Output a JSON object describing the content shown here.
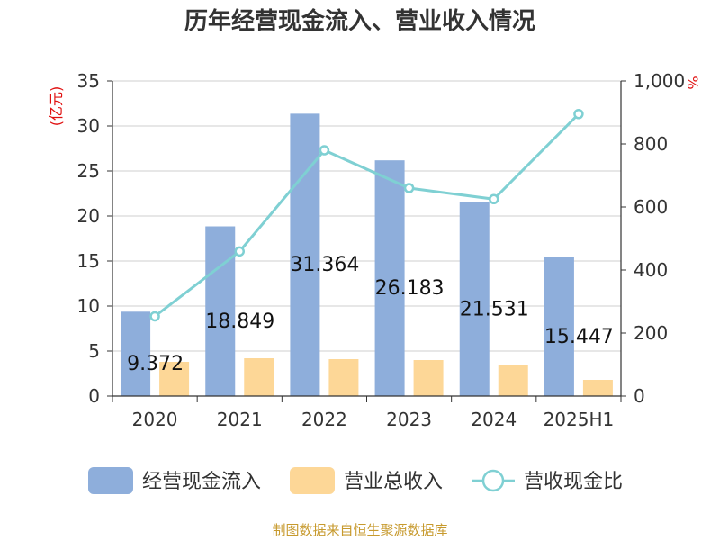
{
  "chart_data": {
    "type": "bar",
    "title": "历年经营现金流入、营业收入情况",
    "categories": [
      "2020",
      "2021",
      "2022",
      "2023",
      "2024",
      "2025H1"
    ],
    "series": [
      {
        "name": "经营现金流入",
        "kind": "bar",
        "axis": "left",
        "color": "#8eaedb",
        "values": [
          9.372,
          18.849,
          31.364,
          26.183,
          21.531,
          15.447
        ]
      },
      {
        "name": "营业总收入",
        "kind": "bar",
        "axis": "left",
        "color": "#fdd797",
        "values": [
          3.8,
          4.2,
          4.1,
          4.0,
          3.5,
          1.8
        ]
      },
      {
        "name": "营收现金比",
        "kind": "line",
        "axis": "right",
        "color": "#7fd0d3",
        "values": [
          253,
          459,
          780,
          660,
          625,
          895
        ]
      }
    ],
    "data_labels": [
      "9.372",
      "18.849",
      "31.364",
      "26.183",
      "21.531",
      "15.447"
    ],
    "left_axis": {
      "label": "(亿元)",
      "min": 0,
      "max": 35,
      "ticks": [
        "0",
        "5",
        "10",
        "15",
        "20",
        "25",
        "30",
        "35"
      ]
    },
    "right_axis": {
      "label": "%",
      "min": 0,
      "max": 1000,
      "ticks": [
        "0",
        "200",
        "400",
        "600",
        "800",
        "1,000"
      ]
    },
    "grid": true,
    "legend_position": "bottom",
    "source": "制图数据来自恒生聚源数据库"
  }
}
